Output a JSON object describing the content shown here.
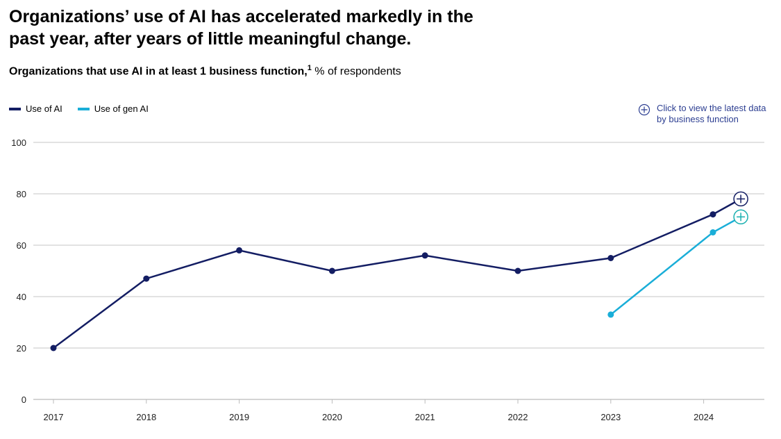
{
  "title": "Organizations’ use of AI has accelerated markedly in the past year, after years of little meaningful change.",
  "subtitle": {
    "bold": "Organizations that use AI in at least 1 business function,",
    "footnote": "1",
    "unit": " % of respondents"
  },
  "cta": {
    "label": "Click to view the latest data by business function",
    "icon": "plus-circle-icon"
  },
  "colors": {
    "use_of_ai": "#131d63",
    "use_of_gen_ai": "#1aaed8",
    "gen_ai_marker": "#1ab0b0",
    "cta": "#2c3e91",
    "grid": "#d0d0d0"
  },
  "chart_data": {
    "type": "line",
    "ylim": [
      0,
      100
    ],
    "yticks": [
      "0",
      "20",
      "40",
      "60",
      "80",
      "100"
    ],
    "xticks": [
      "2017",
      "2018",
      "2019",
      "2020",
      "2021",
      "2022",
      "2023",
      "2024"
    ],
    "grid": true,
    "legend": "top-left",
    "series": [
      {
        "name": "Use of AI",
        "x": [
          2017,
          2018,
          2019,
          2020,
          2021,
          2022,
          2023,
          2024.1,
          2024.4
        ],
        "y": [
          20,
          47,
          58,
          50,
          56,
          50,
          55,
          72,
          78
        ]
      },
      {
        "name": "Use of gen AI",
        "x": [
          2023,
          2024.1,
          2024.4
        ],
        "y": [
          33,
          65,
          71
        ]
      }
    ]
  }
}
